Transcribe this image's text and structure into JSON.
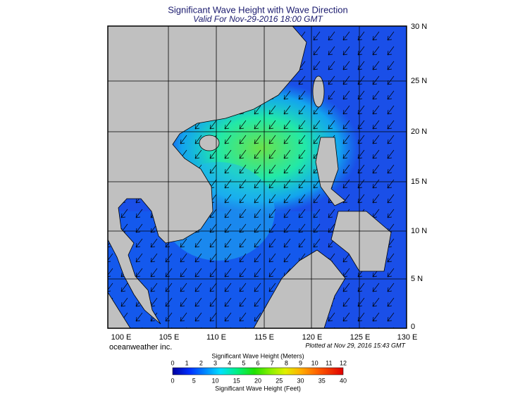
{
  "header": {
    "title": "Significant Wave Height with Wave Direction",
    "subtitle": "Valid For Nov-29-2016 18:00 GMT"
  },
  "map": {
    "lat_labels": [
      "30 N",
      "25 N",
      "20 N",
      "15 N",
      "10 N",
      "5 N",
      "0"
    ],
    "lon_labels": [
      "100 E",
      "105 E",
      "110 E",
      "115 E",
      "120 E",
      "125 E",
      "130 E"
    ]
  },
  "footer": {
    "credit": "oceanweather inc.",
    "plotted": "Plotted at Nov 29, 2016 15:43 GMT"
  },
  "legend": {
    "meters_title": "Significant Wave Height (Meters)",
    "meters_ticks": [
      0,
      1,
      2,
      3,
      4,
      5,
      6,
      7,
      8,
      9,
      10,
      11,
      12
    ],
    "feet_ticks": [
      0,
      5,
      10,
      15,
      20,
      25,
      30,
      35,
      40
    ],
    "feet_title": "Significant Wave Height (Feet)"
  }
}
